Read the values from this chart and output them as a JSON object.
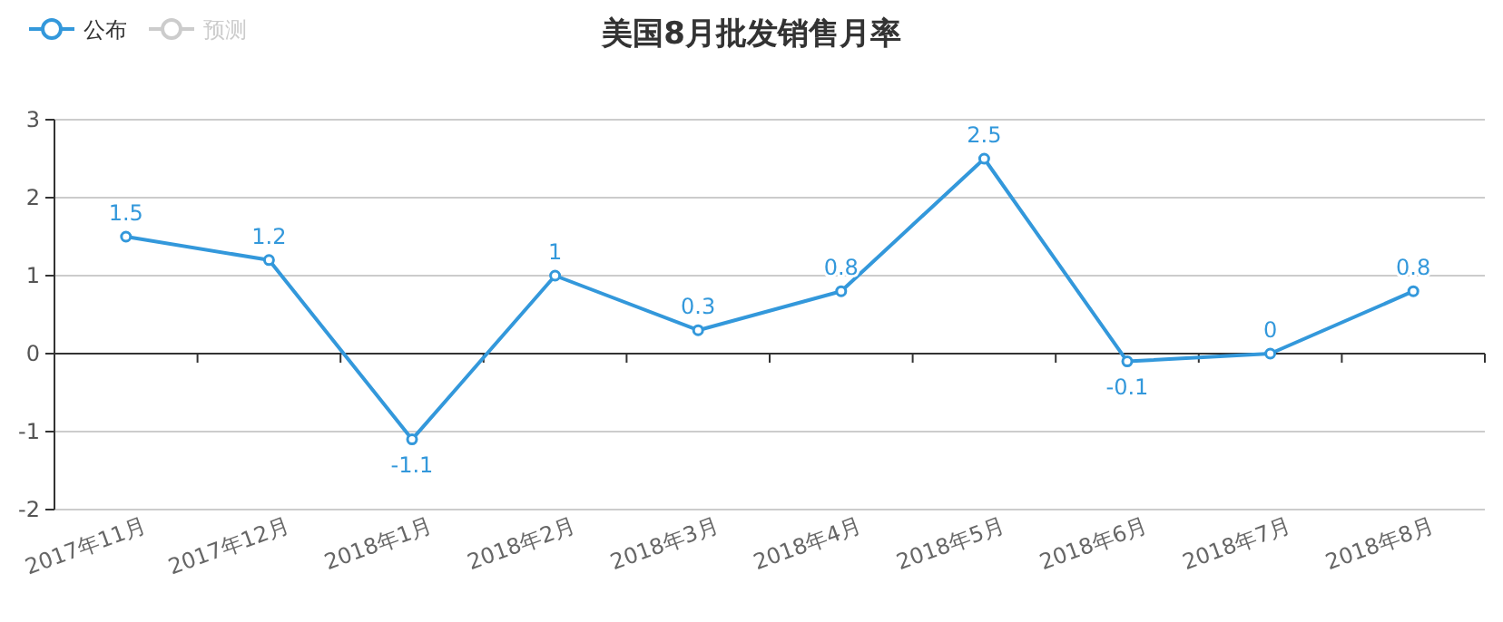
{
  "chart_data": {
    "type": "line",
    "title": "美国8月批发销售月率",
    "categories": [
      "2017年11月",
      "2017年12月",
      "2018年1月",
      "2018年2月",
      "2018年3月",
      "2018年4月",
      "2018年5月",
      "2018年6月",
      "2018年7月",
      "2018年8月"
    ],
    "series": [
      {
        "name": "公布",
        "color": "#3398db",
        "values": [
          1.5,
          1.2,
          -1.1,
          1,
          0.3,
          0.8,
          2.5,
          -0.1,
          0,
          0.8
        ]
      },
      {
        "name": "预测",
        "color": "#cccccc",
        "values": [
          null,
          null,
          null,
          null,
          null,
          null,
          null,
          null,
          null,
          null
        ]
      }
    ],
    "ylim": [
      -2,
      3
    ],
    "yticks": [
      -2,
      -1,
      0,
      1,
      2,
      3
    ],
    "grid": "y",
    "legend": "top left",
    "marker": "circle",
    "line_style": "solid",
    "data_labels": true
  }
}
